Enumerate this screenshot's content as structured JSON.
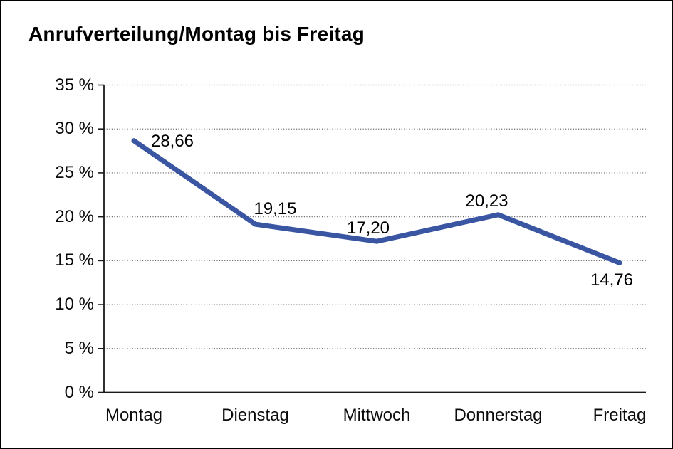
{
  "chart_data": {
    "type": "line",
    "title": "Anrufverteilung/Montag bis Freitag",
    "categories": [
      "Montag",
      "Dienstag",
      "Mittwoch",
      "Donnerstag",
      "Freitag"
    ],
    "series": [
      {
        "name": "Anrufverteilung",
        "values": [
          28.66,
          19.15,
          17.2,
          20.23,
          14.76
        ],
        "value_labels": [
          "28,66",
          "19,15",
          "17,20",
          "20,23",
          "14,76"
        ]
      }
    ],
    "xlabel": "",
    "ylabel": "",
    "ylim": [
      0,
      35
    ],
    "ytick_step": 5,
    "ytick_labels": [
      "0 %",
      "5 %",
      "10 %",
      "15 %",
      "20 %",
      "25 %",
      "30 %",
      "35 %"
    ],
    "grid": "horizontal-dotted",
    "legend_position": "none",
    "line_color": "#3A56A3",
    "axis_color": "#1a1a1a",
    "gridline_color": "#6e6e6e",
    "text_color": "#0b0b0b",
    "background_color": "#ffffff",
    "frame_border_color": "#000000"
  }
}
